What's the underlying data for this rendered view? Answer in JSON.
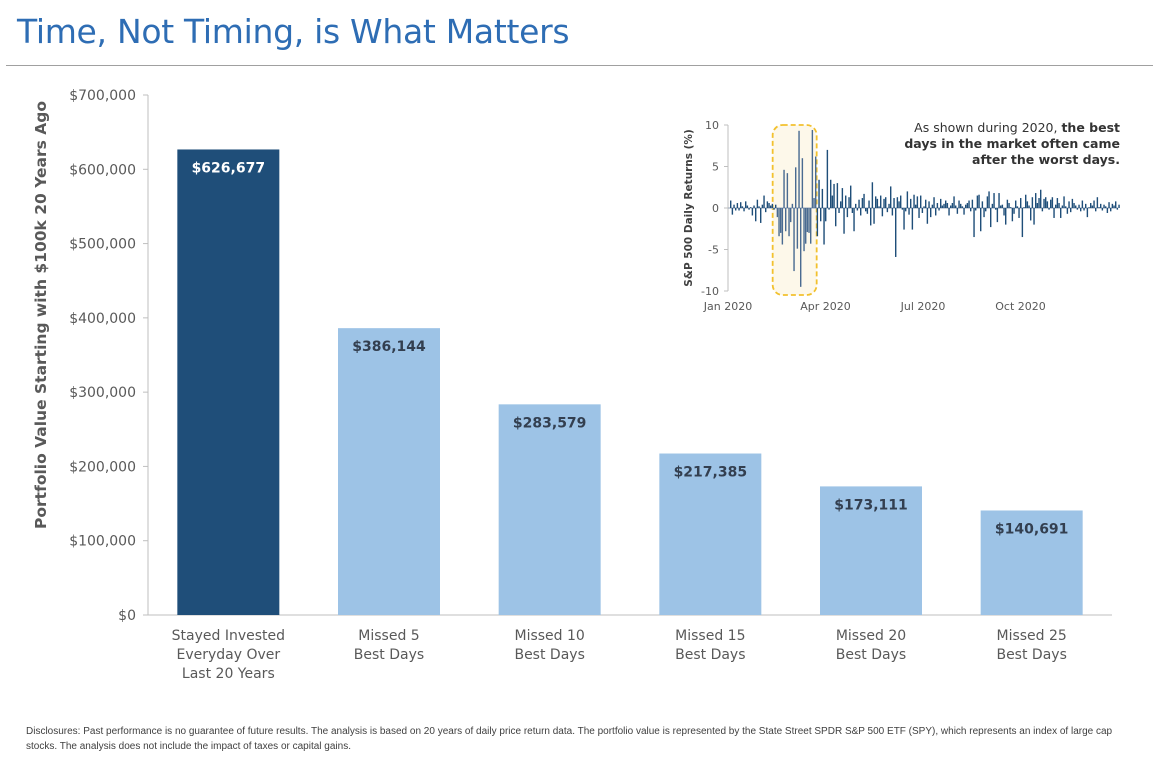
{
  "page": {
    "title": "Time, Not Timing, is What Matters",
    "disclosure": "Disclosures: Past performance is no guarantee of future results. The analysis is based on 20 years of daily price return data. The portfolio value is represented by the State Street SPDR S&P 500 ETF (SPY), which represents an index of large cap stocks. The analysis does not include the impact of taxes or capital gains."
  },
  "colors": {
    "title": "#2e6db4",
    "primary_bar": "#1f4e79",
    "secondary_bar": "#9dc3e6",
    "inset_bar": "#1f4e79",
    "highlight_border": "#f2c12e",
    "highlight_fill": "#fdf8ea",
    "axis": "#bfbfbf",
    "tick_text": "#595959"
  },
  "chart_data": [
    {
      "type": "bar",
      "title": "",
      "xlabel": "",
      "ylabel": "Portfolio Value Starting with $100k 20 Years Ago",
      "ylim": [
        0,
        700000
      ],
      "yticks": [
        0,
        100000,
        200000,
        300000,
        400000,
        500000,
        600000,
        700000
      ],
      "ytick_labels": [
        "$0",
        "$100,000",
        "$200,000",
        "$300,000",
        "$400,000",
        "$500,000",
        "$600,000",
        "$700,000"
      ],
      "categories": [
        [
          "Stayed Invested",
          "Everyday Over",
          "Last 20 Years"
        ],
        [
          "Missed 5",
          "Best Days"
        ],
        [
          "Missed 10",
          "Best Days"
        ],
        [
          "Missed 15",
          "Best Days"
        ],
        [
          "Missed 20",
          "Best Days"
        ],
        [
          "Missed 25",
          "Best Days"
        ]
      ],
      "values": [
        626677,
        386144,
        283579,
        217385,
        173111,
        140691
      ],
      "data_labels": [
        "$626,677",
        "$386,144",
        "$283,579",
        "$217,385",
        "$173,111",
        "$140,691"
      ],
      "highlight_index": 0,
      "grid": false,
      "legend": "none"
    },
    {
      "type": "bar",
      "title": "",
      "xlabel": "",
      "ylabel": "S&P 500 Daily Returns (%)",
      "ylim": [
        -10,
        10
      ],
      "yticks": [
        -10,
        -5,
        0,
        5,
        10
      ],
      "ytick_labels": [
        "-10",
        "-5",
        "0",
        "5",
        "10"
      ],
      "xticks": [
        "Jan 2020",
        "Apr 2020",
        "Jul 2020",
        "Oct 2020"
      ],
      "annotation": {
        "text_plain": "As shown during 2020, ",
        "text_bold": "the best days in the market often came after the worst days.",
        "highlight_region": "late Feb 2020 – early Apr 2020"
      },
      "values_note": "approximate daily returns, read from bars",
      "values": [
        0.9,
        -0.8,
        0.4,
        -0.3,
        0.6,
        -0.3,
        0.7,
        0.2,
        -0.4,
        0.8,
        0.3,
        -0.2,
        0.1,
        -0.9,
        0.3,
        -1.6,
        1.0,
        0.2,
        -1.8,
        0.4,
        1.5,
        -0.5,
        0.8,
        0.6,
        0.3,
        0.5,
        -0.2,
        0.4,
        -1.1,
        -3.4,
        -3.0,
        -4.4,
        4.6,
        -2.8,
        4.2,
        -3.4,
        -1.7,
        0.5,
        -7.6,
        4.9,
        -4.9,
        9.3,
        -9.5,
        6.0,
        -5.2,
        -4.3,
        -2.9,
        -3.0,
        -4.3,
        9.4,
        1.2,
        6.2,
        -3.4,
        3.4,
        -1.6,
        2.3,
        -4.4,
        -1.6,
        7.0,
        -0.2,
        3.4,
        1.5,
        2.9,
        -2.2,
        3.0,
        -0.6,
        0.8,
        2.4,
        -3.1,
        1.5,
        -1.1,
        1.3,
        2.7,
        -0.6,
        -2.8,
        0.5,
        -0.3,
        1.0,
        -0.9,
        1.2,
        1.7,
        -0.4,
        -0.7,
        0.9,
        -2.1,
        3.1,
        -1.9,
        1.4,
        1.1,
        0.2,
        1.5,
        -1.0,
        1.1,
        1.3,
        -0.5,
        0.5,
        2.6,
        -0.9,
        1.2,
        -5.9,
        1.3,
        0.8,
        1.5,
        -0.2,
        -2.6,
        -0.4,
        2.0,
        -0.8,
        1.1,
        -2.6,
        1.6,
        0.4,
        1.4,
        -1.2,
        1.5,
        -0.6,
        0.2,
        1.0,
        -1.9,
        0.8,
        -1.1,
        0.4,
        1.3,
        -0.9,
        0.6,
        -0.3,
        1.1,
        0.3,
        0.5,
        0.9,
        0.6,
        -0.9,
        0.3,
        0.6,
        1.4,
        0.3,
        -0.7,
        0.9,
        0.5,
        0.2,
        -0.8,
        0.4,
        0.6,
        0.9,
        -0.4,
        1.0,
        -3.5,
        -0.3,
        1.5,
        1.6,
        -2.8,
        0.8,
        -1.1,
        -0.4,
        1.4,
        2.0,
        -2.3,
        0.5,
        1.8,
        -0.2,
        -1.7,
        1.8,
        0.3,
        0.4,
        -0.9,
        -2.0,
        1.0,
        0.6,
        0.1,
        -1.6,
        -0.7,
        0.9,
        0.2,
        -1.2,
        1.2,
        -3.5,
        0.1,
        1.6,
        0.8,
        0.3,
        -1.5,
        1.3,
        -2.0,
        1.8,
        0.6,
        1.2,
        2.2,
        -0.4,
        1.1,
        1.3,
        0.8,
        -0.2,
        1.0,
        1.3,
        -1.2,
        0.4,
        1.2,
        0.6,
        -1.2,
        0.3,
        1.4,
        0.2,
        -0.7,
        0.8,
        -0.5,
        1.1,
        0.6,
        0.3,
        -0.2,
        0.4,
        -0.4,
        0.9,
        -0.3,
        0.5,
        -1.1,
        0.1,
        0.6,
        0.3,
        0.9,
        -0.4,
        1.3,
        0.1,
        0.5,
        -0.3,
        0.4,
        0.2,
        -0.6,
        0.7,
        -0.4,
        0.5,
        0.3,
        0.8,
        -0.2,
        0.4
      ],
      "grid": false,
      "legend": "none"
    }
  ]
}
